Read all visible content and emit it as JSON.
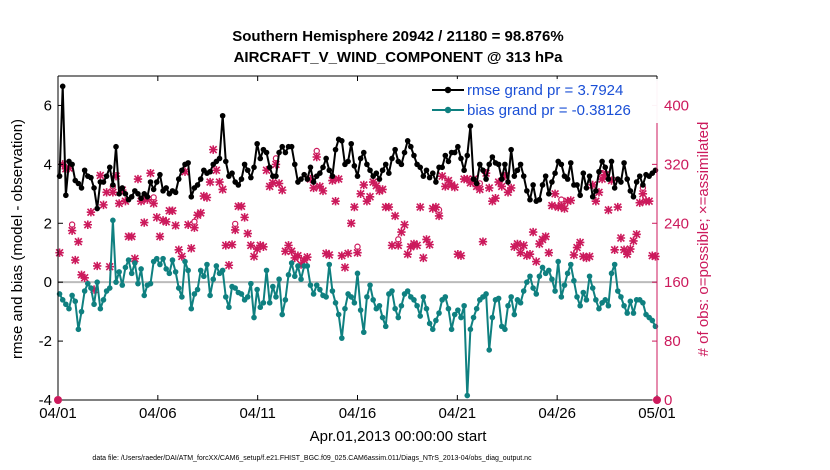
{
  "chart_data": {
    "type": "line",
    "title": "Southern Hemisphere 20942 / 21180 = 98.876%",
    "subtitle": "AIRCRAFT_V_WIND_COMPONENT @ 313 hPa",
    "xlabel": "Apr.01,2013 00:00:00 start",
    "ylabel": "rmse and bias (model - observation)",
    "y2label": "# of obs: o=possible; ×=assimilated",
    "x_tick_labels": [
      "04/01",
      "04/06",
      "04/11",
      "04/16",
      "04/21",
      "04/26",
      "05/01"
    ],
    "x_tick_days": [
      0,
      5,
      10,
      15,
      20,
      25,
      30
    ],
    "xlim": [
      0,
      30
    ],
    "ylim": [
      -4,
      7
    ],
    "y_ticks": [
      -4,
      -2,
      0,
      2,
      4,
      6
    ],
    "y2lim": [
      0,
      440
    ],
    "y2_ticks": [
      0,
      80,
      160,
      240,
      320,
      400
    ],
    "footnote": "data file: /Users/raeder/DAI/ATM_forcXX/CAM6_setup/f.e21.FHIST_BGC.f09_025.CAM6assim.011/Diags_NTrS_2013-04/obs_diag_output.nc",
    "colors": {
      "rmse": "#000000",
      "bias": "#0f8080",
      "obs": "#cc1a5c",
      "zero": "#bbbbbb"
    },
    "series": [
      {
        "name": "rmse grand pr = 3.7924",
        "axis": "left",
        "values": [
          3.6,
          6.65,
          2.95,
          4.1,
          4.0,
          3.45,
          3.35,
          3.2,
          3.8,
          3.6,
          3.55,
          3.2,
          2.5,
          3.4,
          3.4,
          3.6,
          3.9,
          3.3,
          4.6,
          3.0,
          3.2,
          3.0,
          2.8,
          2.9,
          3.1,
          3.0,
          2.85,
          3.0,
          2.9,
          3.4,
          3.15,
          3.4,
          3.65,
          3.1,
          3.2,
          3.0,
          3.1,
          3.05,
          3.5,
          3.8,
          4.0,
          4.05,
          2.9,
          3.2,
          3.3,
          3.5,
          3.8,
          3.7,
          3.75,
          4.0,
          4.1,
          4.2,
          5.65,
          4.1,
          3.6,
          3.7,
          3.4,
          3.3,
          3.5,
          4.0,
          3.8,
          3.55,
          3.9,
          4.7,
          4.2,
          4.5,
          4.4,
          3.9,
          3.6,
          3.6,
          4.4,
          4.6,
          4.4,
          4.6,
          4.6,
          4.0,
          3.4,
          3.5,
          3.65,
          3.5,
          3.9,
          3.4,
          3.6,
          3.7,
          3.9,
          4.2,
          3.8,
          3.6,
          4.5,
          4.85,
          4.8,
          4.0,
          4.1,
          4.7,
          3.95,
          3.6,
          4.2,
          4.4,
          4.0,
          3.8,
          3.6,
          3.7,
          3.5,
          3.8,
          4.0,
          3.7,
          4.2,
          4.5,
          4.1,
          4.0,
          4.4,
          4.8,
          4.6,
          4.3,
          4.0,
          3.9,
          3.6,
          3.8,
          3.55,
          3.7,
          3.4,
          3.9,
          3.9,
          4.3,
          4.1,
          4.4,
          4.4,
          4.6,
          4.2,
          3.8,
          4.3,
          5.3,
          3.5,
          3.35,
          4.0,
          3.8,
          3.5,
          4.0,
          4.25,
          4.05,
          4.0,
          3.5,
          4.0,
          3.4,
          4.5,
          3.6,
          3.8,
          4.0,
          3.6,
          3.1,
          2.8,
          3.3,
          2.75,
          2.8,
          3.3,
          3.6,
          3.0,
          3.4,
          3.7,
          4.1,
          4.0,
          3.6,
          3.5,
          4.05,
          3.3,
          3.3,
          2.95,
          3.7,
          3.2,
          3.6,
          2.9,
          3.1,
          3.75,
          4.1,
          3.9,
          3.5,
          4.1,
          3.2,
          3.5,
          3.4,
          4.05,
          3.5,
          3.1,
          2.9,
          3.4,
          3.6,
          3.3,
          3.65,
          3.6,
          3.7,
          3.8
        ]
      },
      {
        "name": "bias grand pr = -0.38126",
        "axis": "left",
        "values": [
          -0.4,
          -0.6,
          -0.75,
          -0.9,
          -0.45,
          -0.65,
          -1.6,
          -1.0,
          -0.3,
          -0.05,
          -0.2,
          -0.75,
          0.0,
          -0.9,
          -0.6,
          -0.3,
          -0.2,
          2.1,
          0.0,
          0.35,
          -0.1,
          0.5,
          0.75,
          0.3,
          0.65,
          -0.05,
          0.45,
          -0.45,
          -0.1,
          -0.05,
          0.7,
          0.8,
          0.6,
          0.8,
          0.45,
          0.3,
          0.75,
          0.35,
          -0.2,
          -0.5,
          0.7,
          0.4,
          -0.9,
          -0.4,
          -0.25,
          0.4,
          0.2,
          0.6,
          -0.45,
          0.1,
          0.55,
          0.3,
          0.4,
          -0.5,
          -0.85,
          -0.15,
          -0.2,
          -0.35,
          -0.4,
          -0.6,
          -0.5,
          -0.05,
          -1.2,
          -0.25,
          -0.85,
          -0.7,
          0.4,
          -0.7,
          -0.15,
          -0.5,
          0.1,
          -1.1,
          -0.6,
          0.25,
          0.65,
          0.2,
          0.55,
          0.1,
          0.55,
          0.55,
          -0.1,
          -0.4,
          -0.1,
          -0.25,
          -0.45,
          -0.5,
          0.6,
          -0.3,
          -0.7,
          -1.1,
          -1.9,
          -0.9,
          -0.4,
          -0.5,
          -0.7,
          0.3,
          -0.95,
          -1.7,
          -0.5,
          -0.1,
          -0.6,
          -0.9,
          -0.8,
          -1.2,
          -1.5,
          -0.4,
          -0.3,
          -0.9,
          -1.2,
          -0.8,
          -0.4,
          -0.3,
          -0.5,
          -0.6,
          -0.8,
          -1.15,
          -0.5,
          -0.9,
          -1.4,
          -1.6,
          -1.3,
          -1.05,
          -0.6,
          -0.5,
          -0.9,
          -1.6,
          -1.1,
          -0.95,
          -1.2,
          -0.8,
          -3.85,
          -1.6,
          -1.2,
          -0.9,
          -0.6,
          -0.5,
          -0.4,
          -2.3,
          -1.2,
          -0.6,
          -0.55,
          -1.5,
          -1.6,
          -0.8,
          -0.5,
          -1.1,
          -0.6,
          -0.7,
          -0.3,
          0.0,
          0.2,
          -0.2,
          -0.4,
          0.2,
          0.5,
          0.3,
          0.4,
          0.1,
          -0.3,
          0.7,
          -0.5,
          -0.1,
          0.3,
          0.6,
          0.05,
          -0.5,
          -0.8,
          -0.35,
          -0.6,
          0.2,
          -0.2,
          -0.6,
          -0.9,
          -0.7,
          -0.6,
          -0.8,
          0.3,
          0.6,
          -0.3,
          -0.5,
          -0.8,
          -1.05,
          -0.65,
          -1.05,
          -0.6,
          -0.6,
          -0.7,
          -1.1,
          -1.2,
          -1.3,
          -1.5
        ]
      },
      {
        "name": "obs assimilated (×)",
        "axis": "right",
        "values": [
          200,
          320,
          314,
          315,
          230,
          190,
          215,
          170,
          166,
          238,
          255,
          150,
          182,
          305,
          265,
          282,
          181,
          282,
          304,
          267,
          285,
          270,
          222,
          222,
          192,
          300,
          270,
          241,
          272,
          308,
          267,
          248,
          222,
          244,
          242,
          257,
          257,
          237,
          204,
          195,
          310,
          238,
          206,
          234,
          251,
          254,
          277,
          275,
          296,
          340,
          312,
          296,
          286,
          210,
          183,
          211,
          231,
          263,
          263,
          248,
          226,
          210,
          195,
          205,
          210,
          208,
          312,
          290,
          295,
          320,
          294,
          285,
          202,
          210,
          202,
          193,
          196,
          184,
          190,
          194,
          300,
          288,
          330,
          290,
          284,
          199,
          197,
          298,
          270,
          300,
          196,
          180,
          199,
          240,
          262,
          200,
          280,
          292,
          270,
          276,
          296,
          291,
          284,
          286,
          262,
          262,
          210,
          250,
          210,
          228,
          238,
          198,
          208,
          212,
          210,
          262,
          193,
          218,
          211,
          260,
          262,
          250,
          304,
          290,
          298,
          292,
          289,
          198,
          196,
          300,
          300,
          295,
          300,
          290,
          286,
          215,
          308,
          288,
          270,
          274,
          296,
          290,
          304,
          282,
          288,
          208,
          212,
          200,
          210,
          196,
          198,
          228,
          188,
          212,
          218,
          222,
          200,
          264,
          280,
          262,
          264,
          260,
          270,
          271,
          197,
          207,
          214,
          195,
          193,
          195,
          292,
          270,
          282,
          300,
          306,
          258,
          298,
          204,
          262,
          220,
          204,
          198,
          205,
          216,
          225,
          268,
          280,
          270,
          270,
          196,
          195
        ]
      }
    ]
  }
}
